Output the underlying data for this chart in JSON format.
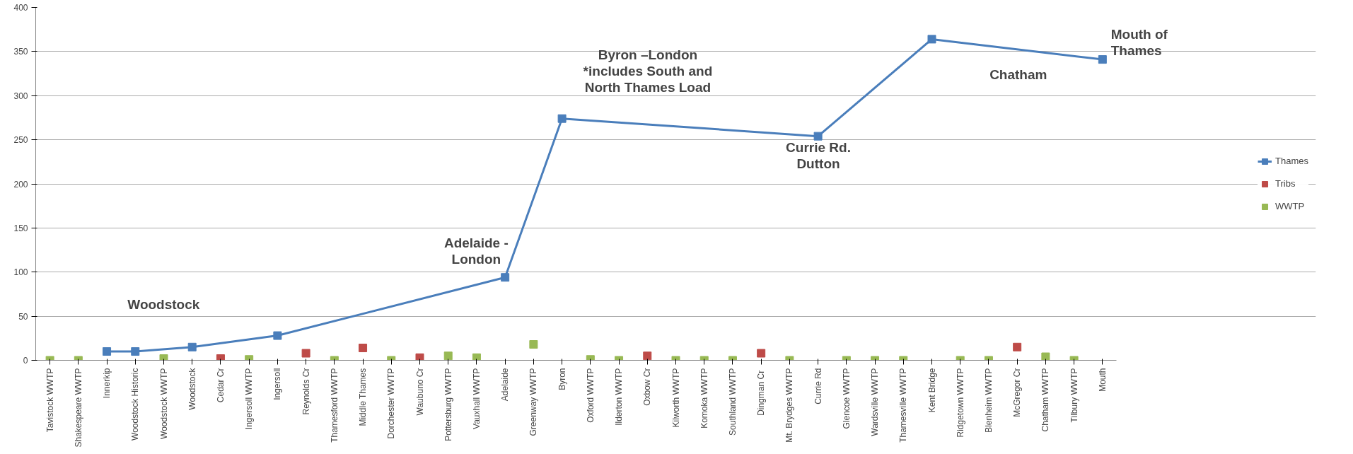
{
  "chart_data": {
    "type": "line",
    "categories": [
      "Tavistock WWTP",
      "Shakespeare WWTP",
      "Innerkip",
      "Woodstock Historic",
      "Woodstock WWTP",
      "Woodstock",
      "Cedar Cr",
      "Ingersoll WWTP",
      "Ingersoll",
      "Reynolds Cr",
      "Thamesford WWTP",
      "Middle Thames",
      "Dorchester WWTP",
      "Waubuno Cr",
      "Pottersburg WWTP",
      "Vauxhall WWTP",
      "Adelaide",
      "Greenway WWTP",
      "Byron",
      "Oxford WWTP",
      "Ilderton WWTP",
      "Oxbow Cr",
      "Kilworth WWTP",
      "Komoka WWTP",
      "Southland WWTP",
      "Dingman  Cr",
      "Mt. Brydges WWTP",
      "Currie Rd",
      "Glencoe WWTP",
      "Wardsville WWTP",
      "Thamesville WWTP",
      "Kent Bridge",
      "Ridgetown WWTP",
      "Blenheim WWTP",
      "McGregor Cr",
      "Chatham WWTP",
      "Tilbury WWTP",
      "Mouth"
    ],
    "series": [
      {
        "name": "Thames",
        "color": "#4a7ebb",
        "values": [
          null,
          null,
          10,
          10,
          null,
          15,
          null,
          null,
          28,
          null,
          null,
          null,
          null,
          null,
          null,
          null,
          94,
          null,
          274,
          null,
          null,
          null,
          null,
          null,
          null,
          null,
          null,
          254,
          null,
          null,
          null,
          364,
          null,
          null,
          null,
          null,
          null,
          341
        ]
      },
      {
        "name": "Tribs",
        "type": "scatter",
        "color": "#be4b48",
        "values": [
          null,
          null,
          null,
          null,
          null,
          null,
          2,
          null,
          null,
          8,
          null,
          14,
          null,
          3,
          null,
          null,
          null,
          null,
          null,
          null,
          null,
          5,
          null,
          null,
          null,
          8,
          null,
          null,
          null,
          null,
          null,
          null,
          null,
          null,
          15,
          null,
          null,
          null
        ]
      },
      {
        "name": "WWTP",
        "type": "scatter",
        "color": "#98b954",
        "values": [
          0,
          0,
          null,
          null,
          2,
          null,
          null,
          1,
          null,
          null,
          0,
          null,
          0,
          null,
          5,
          3,
          null,
          18,
          null,
          1,
          0,
          null,
          0,
          0,
          0,
          null,
          0,
          null,
          0,
          0,
          0,
          null,
          0,
          0,
          null,
          4,
          0,
          null
        ]
      }
    ],
    "ylim": [
      0,
      400
    ],
    "yticks": [
      0,
      50,
      100,
      150,
      200,
      250,
      300,
      350,
      400
    ],
    "grid": "y",
    "legend": "right",
    "marker": "square",
    "annotations": [
      "Woodstock",
      "Adelaide -\nLondon",
      "Byron –London\n*includes South and\nNorth Thames Load",
      "Currie Rd.\nDutton",
      "Chatham",
      "Mouth of\nThames"
    ]
  }
}
